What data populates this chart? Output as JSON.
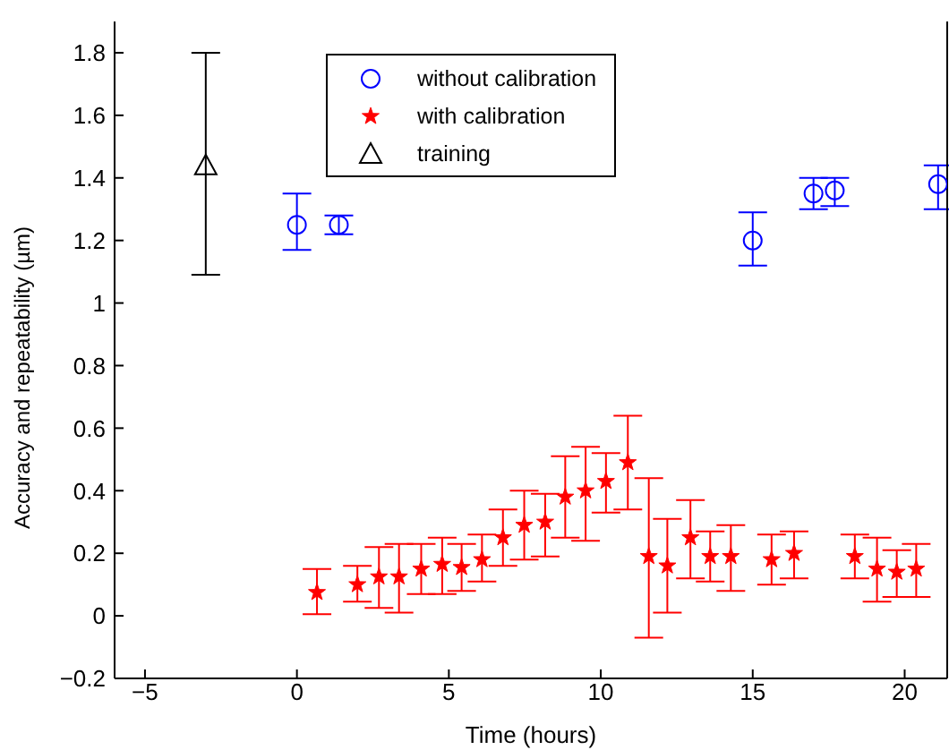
{
  "chart_data": {
    "type": "scatter",
    "xlabel": "Time (hours)",
    "ylabel": "Accuracy and repeatability (µm)",
    "xlim": [
      -6,
      21.4
    ],
    "ylim": [
      -0.2,
      1.9
    ],
    "xticks": [
      -5,
      0,
      5,
      10,
      15,
      20
    ],
    "yticks": [
      -0.2,
      0,
      0.2,
      0.4,
      0.6,
      0.8,
      1,
      1.2,
      1.4,
      1.6,
      1.8
    ],
    "grid": false,
    "legend": "top",
    "series": [
      {
        "name": "without calibration",
        "color": "#0000ff",
        "marker": "circle",
        "x": [
          0,
          1.38,
          15,
          17,
          17.7,
          21.1
        ],
        "values": [
          1.25,
          1.25,
          1.2,
          1.35,
          1.36,
          1.38
        ],
        "errors": [
          [
            1.17,
            1.35
          ],
          [
            1.22,
            1.28
          ],
          [
            1.12,
            1.29
          ],
          [
            1.3,
            1.4
          ],
          [
            1.31,
            1.4
          ],
          [
            1.3,
            1.44
          ]
        ]
      },
      {
        "name": "with calibration",
        "color": "#ff0000",
        "marker": "star",
        "x": [
          0.66,
          1.99,
          2.7,
          3.36,
          4.09,
          4.78,
          5.42,
          6.09,
          6.78,
          7.48,
          8.17,
          8.83,
          9.5,
          10.17,
          10.89,
          11.58,
          12.19,
          12.95,
          13.6,
          14.28,
          15.62,
          16.36,
          18.36,
          19.09,
          19.74,
          20.38
        ],
        "values": [
          0.075,
          0.1,
          0.125,
          0.125,
          0.15,
          0.165,
          0.155,
          0.18,
          0.25,
          0.29,
          0.3,
          0.38,
          0.4,
          0.43,
          0.49,
          0.19,
          0.16,
          0.25,
          0.19,
          0.19,
          0.18,
          0.2,
          0.19,
          0.15,
          0.14,
          0.15
        ],
        "errors": [
          [
            0.005,
            0.15
          ],
          [
            0.045,
            0.16
          ],
          [
            0.025,
            0.22
          ],
          [
            0.01,
            0.23
          ],
          [
            0.07,
            0.23
          ],
          [
            0.07,
            0.25
          ],
          [
            0.08,
            0.23
          ],
          [
            0.11,
            0.26
          ],
          [
            0.16,
            0.34
          ],
          [
            0.18,
            0.4
          ],
          [
            0.19,
            0.39
          ],
          [
            0.25,
            0.51
          ],
          [
            0.24,
            0.54
          ],
          [
            0.33,
            0.52
          ],
          [
            0.34,
            0.64
          ],
          [
            -0.07,
            0.44
          ],
          [
            0.01,
            0.31
          ],
          [
            0.12,
            0.37
          ],
          [
            0.11,
            0.27
          ],
          [
            0.08,
            0.29
          ],
          [
            0.1,
            0.26
          ],
          [
            0.12,
            0.27
          ],
          [
            0.12,
            0.26
          ],
          [
            0.045,
            0.25
          ],
          [
            0.06,
            0.21
          ],
          [
            0.06,
            0.23
          ]
        ]
      },
      {
        "name": "training",
        "color": "#000000",
        "marker": "triangle",
        "x": [
          -3
        ],
        "values": [
          1.44
        ],
        "errors": [
          [
            1.09,
            1.8
          ]
        ]
      }
    ]
  }
}
